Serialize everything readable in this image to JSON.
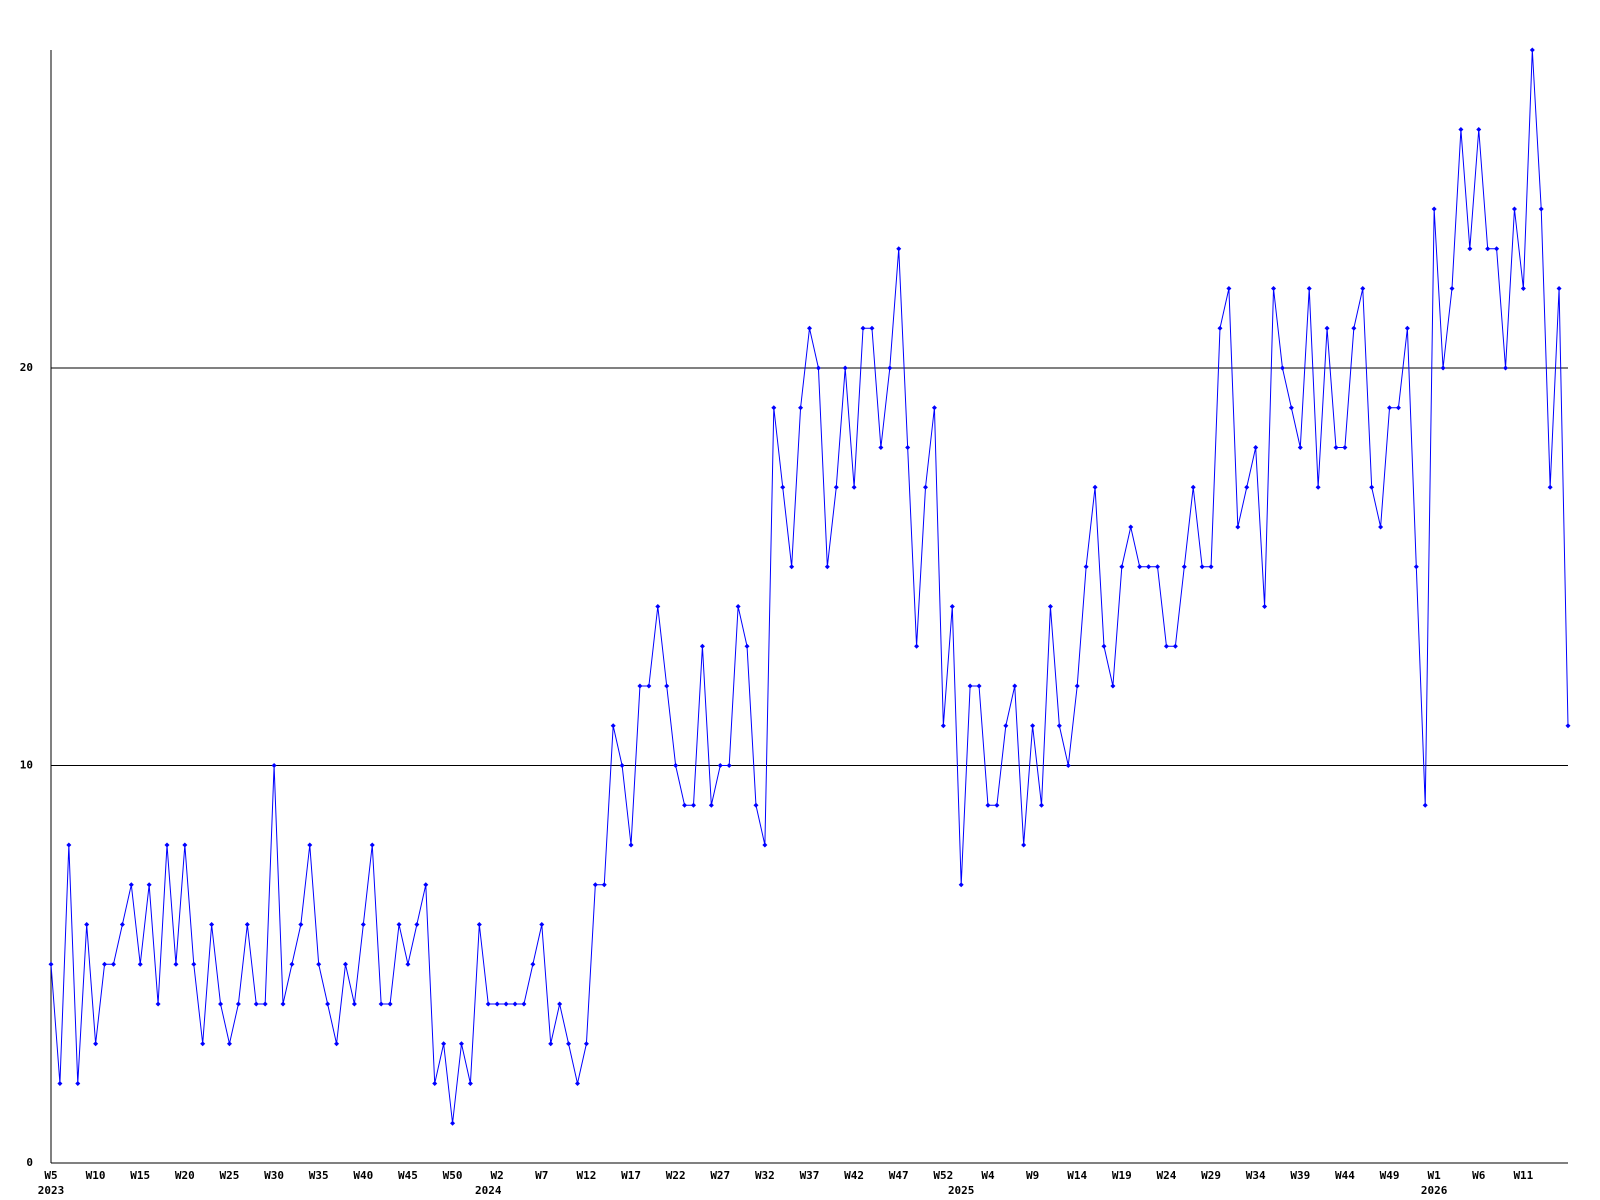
{
  "chart_data": {
    "type": "line",
    "categories": [
      "W5",
      null,
      null,
      null,
      null,
      "W10",
      null,
      null,
      null,
      null,
      "W15",
      null,
      null,
      null,
      null,
      "W20",
      null,
      null,
      null,
      null,
      "W25",
      null,
      null,
      null,
      null,
      "W30",
      null,
      null,
      null,
      null,
      "W35",
      null,
      null,
      null,
      null,
      "W40",
      null,
      null,
      null,
      null,
      "W45",
      null,
      null,
      null,
      null,
      "W50",
      null,
      null,
      null,
      null,
      "W2",
      null,
      null,
      null,
      null,
      "W7",
      null,
      null,
      null,
      null,
      "W12",
      null,
      null,
      null,
      null,
      "W17",
      null,
      null,
      null,
      null,
      "W22",
      null,
      null,
      null,
      null,
      "W27",
      null,
      null,
      null,
      null,
      "W32",
      null,
      null,
      null,
      null,
      "W37",
      null,
      null,
      null,
      null,
      "W42",
      null,
      null,
      null,
      null,
      "W47",
      null,
      null,
      null,
      null,
      "W52",
      null,
      null,
      null,
      null,
      "W4",
      null,
      null,
      null,
      null,
      "W9",
      null,
      null,
      null,
      null,
      "W14",
      null,
      null,
      null,
      null,
      "W19",
      null,
      null,
      null,
      null,
      "W24",
      null,
      null,
      null,
      null,
      "W29",
      null,
      null,
      null,
      null,
      "W34",
      null,
      null,
      null,
      null,
      "W39",
      null,
      null,
      null,
      null,
      "W44",
      null,
      null,
      null,
      null,
      "W49",
      null,
      null,
      null,
      null,
      "W1",
      null,
      null,
      null,
      null,
      "W6",
      null,
      null,
      null,
      null,
      "W11",
      null,
      null,
      null,
      null,
      null
    ],
    "years": [
      "2023",
      null,
      null,
      null,
      null,
      null,
      null,
      null,
      null,
      null,
      null,
      null,
      null,
      null,
      null,
      null,
      null,
      null,
      null,
      null,
      null,
      null,
      null,
      null,
      null,
      null,
      null,
      null,
      null,
      null,
      null,
      null,
      null,
      null,
      null,
      null,
      null,
      null,
      null,
      null,
      null,
      null,
      null,
      null,
      null,
      null,
      null,
      null,
      null,
      "2024",
      null,
      null,
      null,
      null,
      null,
      null,
      null,
      null,
      null,
      null,
      null,
      null,
      null,
      null,
      null,
      null,
      null,
      null,
      null,
      null,
      null,
      null,
      null,
      null,
      null,
      null,
      null,
      null,
      null,
      null,
      null,
      null,
      null,
      null,
      null,
      null,
      null,
      null,
      null,
      null,
      null,
      null,
      null,
      null,
      null,
      null,
      null,
      null,
      null,
      null,
      null,
      null,
      "2025",
      null,
      null,
      null,
      null,
      null,
      null,
      null,
      null,
      null,
      null,
      null,
      null,
      null,
      null,
      null,
      null,
      null,
      null,
      null,
      null,
      null,
      null,
      null,
      null,
      null,
      null,
      null,
      null,
      null,
      null,
      null,
      null,
      null,
      null,
      null,
      null,
      null,
      null,
      null,
      null,
      null,
      null,
      null,
      null,
      null,
      null,
      null,
      null,
      null,
      null,
      null,
      null,
      "2026",
      null,
      null,
      null,
      null,
      null,
      null,
      null,
      null,
      null,
      null,
      null,
      null,
      null,
      null,
      null
    ],
    "values": [
      5,
      2,
      8,
      2,
      6,
      3,
      5,
      5,
      6,
      7,
      5,
      7,
      4,
      8,
      5,
      8,
      5,
      3,
      6,
      4,
      3,
      4,
      6,
      4,
      4,
      10,
      4,
      5,
      6,
      8,
      5,
      4,
      3,
      5,
      4,
      6,
      8,
      4,
      4,
      6,
      5,
      6,
      7,
      2,
      3,
      1,
      3,
      2,
      6,
      4,
      4,
      4,
      4,
      4,
      5,
      6,
      3,
      4,
      3,
      2,
      3,
      7,
      7,
      11,
      10,
      8,
      12,
      12,
      14,
      12,
      10,
      9,
      9,
      13,
      9,
      10,
      10,
      14,
      13,
      9,
      8,
      19,
      17,
      15,
      19,
      21,
      20,
      15,
      17,
      20,
      17,
      21,
      21,
      18,
      20,
      23,
      18,
      13,
      17,
      19,
      11,
      14,
      7,
      12,
      12,
      9,
      9,
      11,
      12,
      8,
      11,
      9,
      14,
      11,
      10,
      12,
      15,
      17,
      13,
      12,
      15,
      16,
      15,
      15,
      15,
      13,
      13,
      15,
      17,
      15,
      15,
      21,
      22,
      16,
      17,
      18,
      14,
      22,
      20,
      19,
      18,
      22,
      17,
      21,
      18,
      18,
      21,
      22,
      17,
      16,
      19,
      19,
      21,
      15,
      9,
      24,
      20,
      22,
      26,
      23,
      26,
      23,
      23,
      20,
      24,
      22,
      28,
      24,
      17,
      22,
      11
    ],
    "color": "#0000ff",
    "ylim": [
      0,
      28
    ],
    "yticks": [
      0,
      10,
      20
    ],
    "grid": true
  }
}
